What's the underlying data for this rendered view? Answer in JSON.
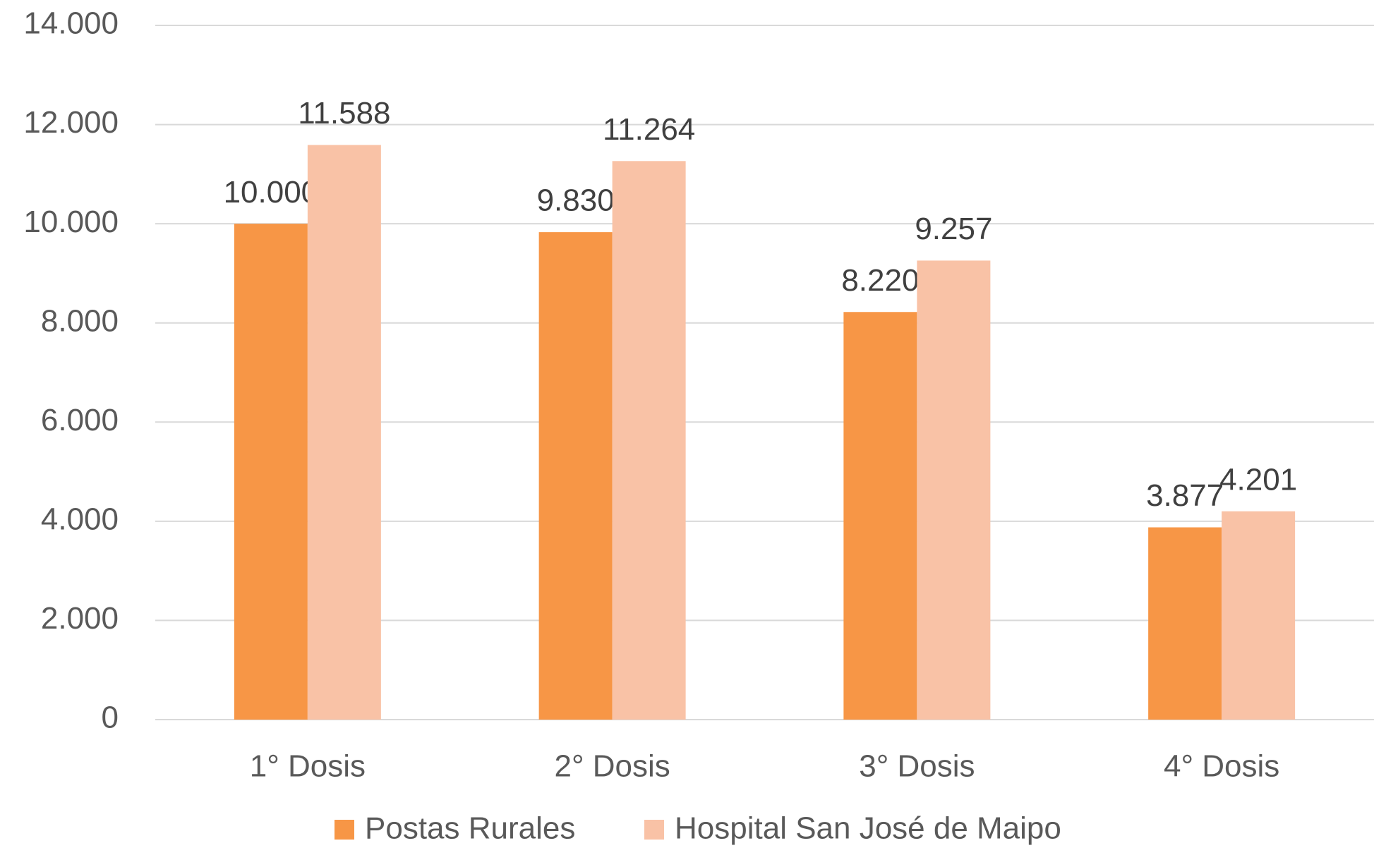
{
  "chart_data": {
    "type": "bar",
    "categories": [
      "1° Dosis",
      "2° Dosis",
      "3° Dosis",
      "4° Dosis"
    ],
    "series": [
      {
        "name": "Postas Rurales",
        "color": "#f79646",
        "values": [
          10000,
          9830,
          8220,
          3877
        ],
        "value_labels": [
          "10.000",
          "9.830",
          "8.220",
          "3.877"
        ]
      },
      {
        "name": "Hospital San José de Maipo",
        "color": "#f9c2a6",
        "values": [
          11588,
          11264,
          9257,
          4201
        ],
        "value_labels": [
          "11.588",
          "11.264",
          "9.257",
          "4.201"
        ]
      }
    ],
    "ylim": [
      0,
      14000
    ],
    "yticks": [
      0,
      {
        "value": 2000,
        "label": "2.000"
      },
      {
        "value": 4000,
        "label": "4.000"
      },
      {
        "value": 6000,
        "label": "6.000"
      },
      {
        "value": 8000,
        "label": "8.000"
      },
      {
        "value": 10000,
        "label": "10.000"
      },
      {
        "value": 12000,
        "label": "12.000"
      },
      {
        "value": 14000,
        "label": "14.000"
      }
    ],
    "grid": true,
    "legend": "bottom"
  }
}
